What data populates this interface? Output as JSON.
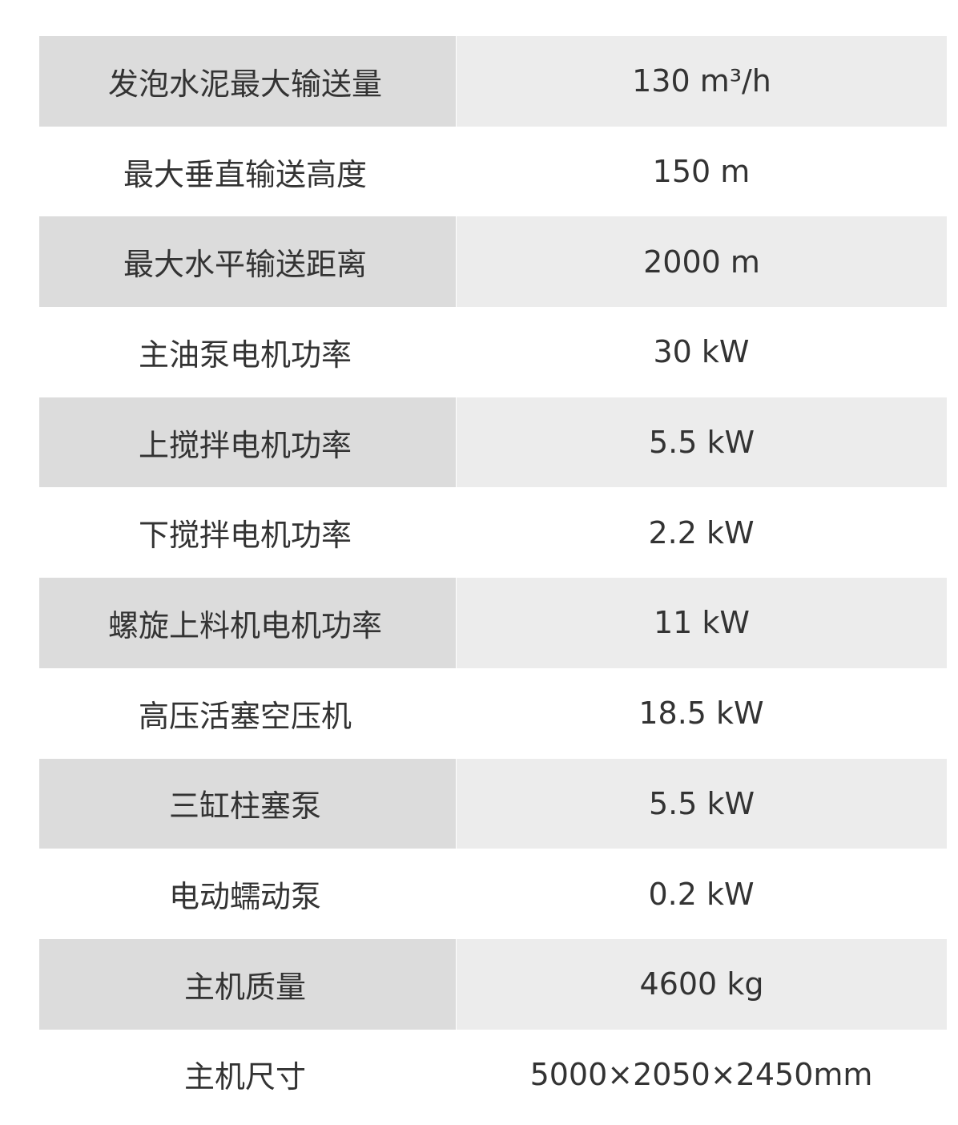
{
  "specs": [
    {
      "label": "发泡水泥最大输送量",
      "value": "130 m³/h"
    },
    {
      "label": "最大垂直输送高度",
      "value": "150 m"
    },
    {
      "label": "最大水平输送距离",
      "value": "2000 m"
    },
    {
      "label": "主油泵电机功率",
      "value": "30 kW"
    },
    {
      "label": "上搅拌电机功率",
      "value": "5.5 kW"
    },
    {
      "label": "下搅拌电机功率",
      "value": "2.2 kW"
    },
    {
      "label": "螺旋上料机电机功率",
      "value": "11 kW"
    },
    {
      "label": "高压活塞空压机",
      "value": "18.5 kW"
    },
    {
      "label": "三缸柱塞泵",
      "value": "5.5 kW"
    },
    {
      "label": "电动蠕动泵",
      "value": "0.2 kW"
    },
    {
      "label": "主机质量",
      "value": "4600 kg"
    },
    {
      "label": "主机尺寸",
      "value": "5000×2050×2450mm"
    }
  ]
}
